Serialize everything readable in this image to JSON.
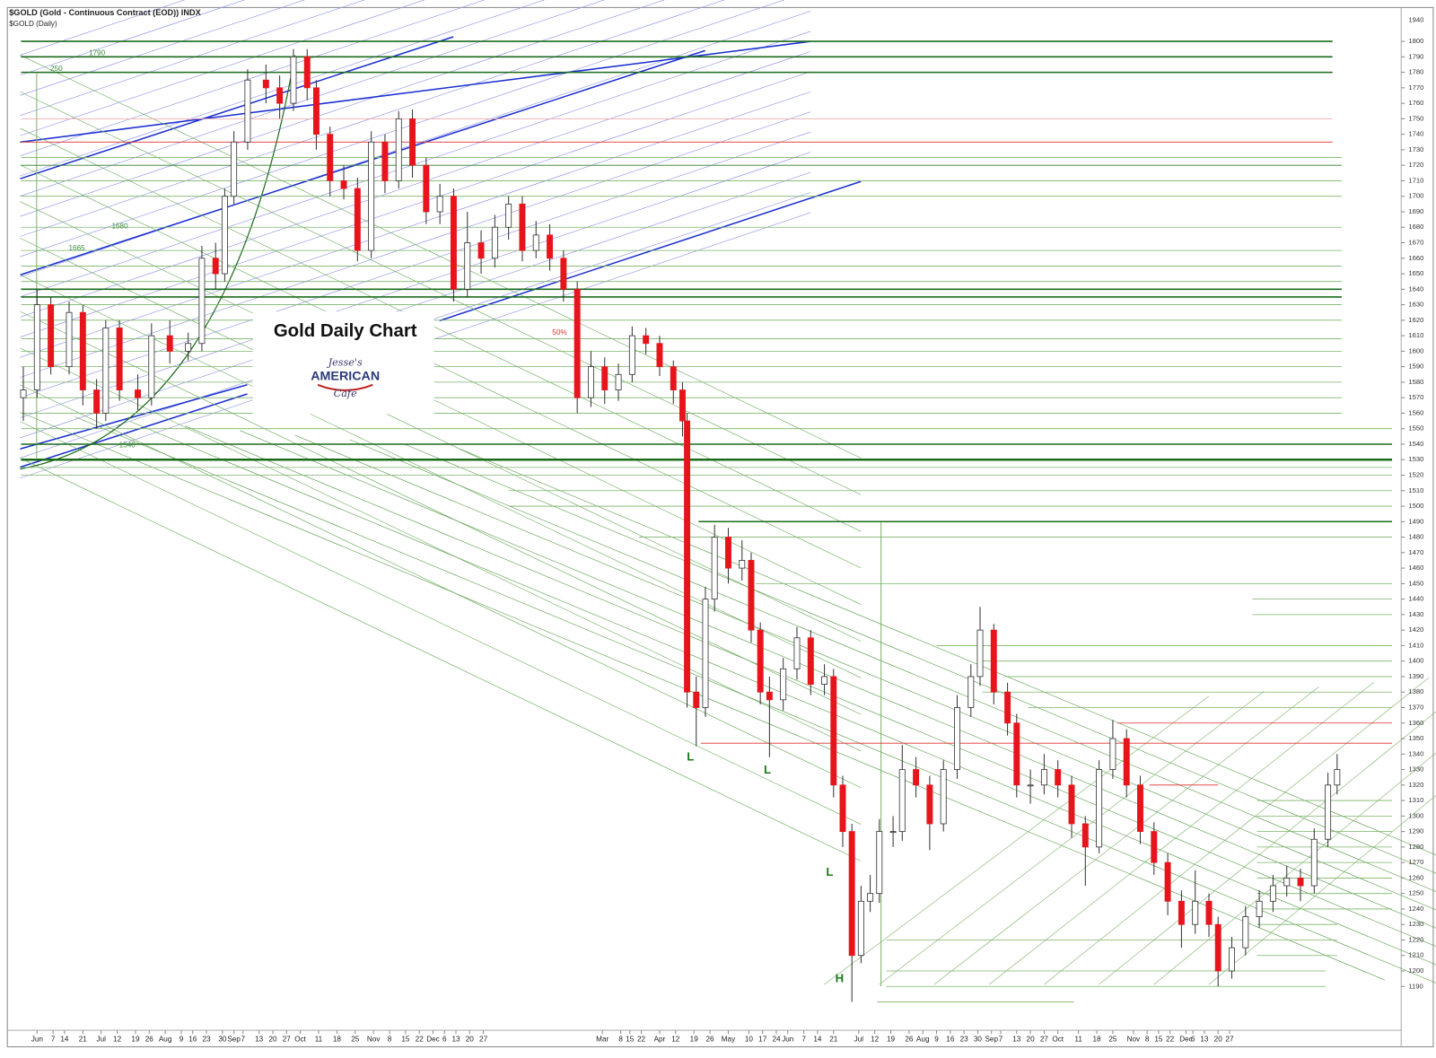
{
  "chart_data": {
    "type": "candlestick",
    "header_title": "$GOLD (Gold - Continuous Contract (EOD)) INDX",
    "header_subtitle": "$GOLD (Daily)",
    "title": "Gold Daily Chart",
    "logo": [
      "Jesse's",
      "AMERICAN",
      "Cafe"
    ],
    "annotations": [
      "1790",
      "250",
      "1680",
      "1665",
      "1540",
      "50%",
      "L",
      "L",
      "L",
      "H"
    ],
    "up_color": "#ffffff",
    "down_color": "#e8141c",
    "wick_color": "#333333",
    "x": [
      1,
      7,
      13,
      21,
      27,
      33,
      37,
      43,
      51,
      57,
      65,
      73,
      79,
      85,
      89,
      93,
      99,
      107,
      113,
      119,
      125,
      129,
      135,
      141,
      147,
      153,
      159,
      165,
      171,
      177,
      183,
      189,
      195,
      201,
      207,
      213,
      219,
      225,
      231,
      237,
      243,
      249,
      255,
      261,
      267,
      273,
      279,
      285,
      289,
      291,
      295,
      299,
      303,
      309,
      315,
      319,
      323,
      327,
      333,
      339,
      345,
      351,
      355,
      359,
      363,
      367,
      371,
      375,
      381,
      385,
      391,
      397,
      403,
      409,
      415,
      419,
      425,
      431,
      435,
      441,
      447,
      453,
      459,
      465,
      471,
      477,
      483,
      489,
      495,
      501,
      507,
      513,
      519,
      523,
      529,
      535,
      541,
      547,
      553,
      559,
      565,
      571,
      575
    ],
    "open": [
      1570,
      1575,
      1630,
      1590,
      1625,
      1575,
      1560,
      1615,
      1575,
      1570,
      1610,
      1600,
      1605,
      1660,
      1650,
      1700,
      1735,
      1775,
      1770,
      1760,
      1790,
      1770,
      1740,
      1710,
      1705,
      1665,
      1735,
      1710,
      1750,
      1720,
      1690,
      1700,
      1640,
      1670,
      1660,
      1680,
      1695,
      1665,
      1675,
      1660,
      1640,
      1570,
      1590,
      1575,
      1585,
      1610,
      1605,
      1590,
      1575,
      1555,
      1380,
      1370,
      1440,
      1480,
      1460,
      1465,
      1420,
      1380,
      1375,
      1395,
      1415,
      1385,
      1390,
      1320,
      1290,
      1210,
      1245,
      1250,
      1290,
      1290,
      1330,
      1320,
      1295,
      1330,
      1370,
      1390,
      1420,
      1380,
      1360,
      1320,
      1320,
      1330,
      1320,
      1295,
      1280,
      1330,
      1350,
      1320,
      1290,
      1270,
      1245,
      1230,
      1245,
      1230,
      1200,
      1215,
      1235,
      1245,
      1255,
      1260,
      1255,
      1285,
      1320
    ],
    "high": [
      1590,
      1640,
      1635,
      1632,
      1630,
      1582,
      1620,
      1620,
      1585,
      1618,
      1620,
      1612,
      1668,
      1670,
      1705,
      1742,
      1782,
      1785,
      1778,
      1795,
      1795,
      1775,
      1745,
      1720,
      1712,
      1742,
      1740,
      1755,
      1756,
      1725,
      1708,
      1705,
      1690,
      1678,
      1688,
      1700,
      1700,
      1684,
      1682,
      1665,
      1645,
      1600,
      1596,
      1592,
      1616,
      1615,
      1610,
      1594,
      1580,
      1560,
      1390,
      1448,
      1488,
      1486,
      1478,
      1470,
      1425,
      1390,
      1402,
      1422,
      1420,
      1398,
      1395,
      1326,
      1295,
      1255,
      1262,
      1298,
      1300,
      1346,
      1338,
      1326,
      1336,
      1378,
      1398,
      1435,
      1424,
      1386,
      1366,
      1330,
      1340,
      1336,
      1326,
      1300,
      1336,
      1362,
      1356,
      1326,
      1296,
      1276,
      1252,
      1265,
      1250,
      1235,
      1222,
      1242,
      1252,
      1262,
      1268,
      1266,
      1292,
      1328,
      1340
    ],
    "low": [
      1555,
      1570,
      1585,
      1585,
      1565,
      1550,
      1555,
      1568,
      1562,
      1565,
      1592,
      1594,
      1600,
      1640,
      1645,
      1695,
      1730,
      1760,
      1750,
      1755,
      1762,
      1730,
      1700,
      1698,
      1658,
      1660,
      1702,
      1705,
      1712,
      1682,
      1682,
      1632,
      1635,
      1650,
      1654,
      1672,
      1658,
      1660,
      1652,
      1632,
      1560,
      1564,
      1566,
      1568,
      1580,
      1598,
      1584,
      1566,
      1545,
      1370,
      1345,
      1364,
      1432,
      1450,
      1452,
      1412,
      1372,
      1338,
      1368,
      1388,
      1378,
      1378,
      1312,
      1280,
      1180,
      1205,
      1238,
      1244,
      1280,
      1284,
      1312,
      1278,
      1290,
      1324,
      1364,
      1384,
      1372,
      1352,
      1312,
      1308,
      1314,
      1312,
      1286,
      1255,
      1276,
      1324,
      1312,
      1282,
      1262,
      1236,
      1215,
      1224,
      1222,
      1190,
      1195,
      1210,
      1228,
      1238,
      1248,
      1245,
      1250,
      1280,
      1314
    ],
    "close": [
      1575,
      1630,
      1590,
      1625,
      1575,
      1560,
      1615,
      1575,
      1570,
      1610,
      1600,
      1605,
      1660,
      1650,
      1700,
      1735,
      1775,
      1770,
      1760,
      1790,
      1770,
      1740,
      1710,
      1705,
      1665,
      1735,
      1710,
      1750,
      1720,
      1690,
      1700,
      1640,
      1670,
      1660,
      1680,
      1695,
      1665,
      1675,
      1660,
      1640,
      1570,
      1590,
      1575,
      1585,
      1610,
      1605,
      1590,
      1575,
      1555,
      1380,
      1370,
      1440,
      1480,
      1460,
      1465,
      1420,
      1380,
      1375,
      1395,
      1415,
      1385,
      1390,
      1320,
      1290,
      1210,
      1245,
      1250,
      1290,
      1290,
      1330,
      1320,
      1295,
      1330,
      1370,
      1390,
      1420,
      1380,
      1360,
      1320,
      1320,
      1330,
      1320,
      1295,
      1280,
      1330,
      1350,
      1320,
      1290,
      1270,
      1245,
      1230,
      1245,
      1230,
      1200,
      1215,
      1235,
      1245,
      1255,
      1260,
      1255,
      1285,
      1320,
      1330
    ],
    "xlim": [
      -6,
      603
    ],
    "ylim": [
      1180,
      1810
    ],
    "y_top_label": "1940",
    "yticks": [
      1190,
      1200,
      1210,
      1220,
      1230,
      1240,
      1250,
      1260,
      1270,
      1280,
      1290,
      1300,
      1310,
      1320,
      1330,
      1340,
      1350,
      1360,
      1370,
      1380,
      1390,
      1400,
      1410,
      1420,
      1430,
      1440,
      1450,
      1460,
      1470,
      1480,
      1490,
      1500,
      1510,
      1520,
      1530,
      1540,
      1550,
      1560,
      1570,
      1580,
      1590,
      1600,
      1610,
      1620,
      1630,
      1640,
      1650,
      1660,
      1670,
      1680,
      1690,
      1700,
      1710,
      1720,
      1730,
      1740,
      1750,
      1760,
      1770,
      1780,
      1790,
      1800
    ],
    "xticks": [
      {
        "value": 7,
        "label": "Jun"
      },
      {
        "value": 14,
        "label": "7"
      },
      {
        "value": 19,
        "label": "14"
      },
      {
        "value": 27,
        "label": "21"
      },
      {
        "value": 35,
        "label": "Jul"
      },
      {
        "value": 42,
        "label": "12"
      },
      {
        "value": 50,
        "label": "19"
      },
      {
        "value": 56,
        "label": "26"
      },
      {
        "value": 63,
        "label": "Aug"
      },
      {
        "value": 70,
        "label": "9"
      },
      {
        "value": 75,
        "label": "16"
      },
      {
        "value": 81,
        "label": "23"
      },
      {
        "value": 88,
        "label": "30"
      },
      {
        "value": 93,
        "label": "Sep"
      },
      {
        "value": 97,
        "label": "7"
      },
      {
        "value": 104,
        "label": "13"
      },
      {
        "value": 110,
        "label": "20"
      },
      {
        "value": 116,
        "label": "27"
      },
      {
        "value": 122,
        "label": "Oct"
      },
      {
        "value": 130,
        "label": "11"
      },
      {
        "value": 138,
        "label": "18"
      },
      {
        "value": 146,
        "label": "25"
      },
      {
        "value": 154,
        "label": "Nov"
      },
      {
        "value": 161,
        "label": "8"
      },
      {
        "value": 168,
        "label": "15"
      },
      {
        "value": 174,
        "label": "22"
      },
      {
        "value": 180,
        "label": "Dec"
      },
      {
        "value": 185,
        "label": "6"
      },
      {
        "value": 190,
        "label": "13"
      },
      {
        "value": 196,
        "label": "20"
      },
      {
        "value": 202,
        "label": "27"
      },
      {
        "value": 254,
        "label": "Mar"
      },
      {
        "value": 262,
        "label": "8"
      },
      {
        "value": 266,
        "label": "15"
      },
      {
        "value": 271,
        "label": "22"
      },
      {
        "value": 279,
        "label": "Apr"
      },
      {
        "value": 286,
        "label": "12"
      },
      {
        "value": 294,
        "label": "19"
      },
      {
        "value": 301,
        "label": "26"
      },
      {
        "value": 309,
        "label": "May"
      },
      {
        "value": 318,
        "label": "10"
      },
      {
        "value": 324,
        "label": "17"
      },
      {
        "value": 330,
        "label": "24"
      },
      {
        "value": 335,
        "label": "Jun"
      },
      {
        "value": 342,
        "label": "7"
      },
      {
        "value": 348,
        "label": "14"
      },
      {
        "value": 355,
        "label": "21"
      },
      {
        "value": 366,
        "label": "Jul"
      },
      {
        "value": 373,
        "label": "12"
      },
      {
        "value": 380,
        "label": "19"
      },
      {
        "value": 388,
        "label": "26"
      },
      {
        "value": 394,
        "label": "Aug"
      },
      {
        "value": 400,
        "label": "9"
      },
      {
        "value": 406,
        "label": "16"
      },
      {
        "value": 412,
        "label": "23"
      },
      {
        "value": 418,
        "label": "30"
      },
      {
        "value": 424,
        "label": "Sep"
      },
      {
        "value": 428,
        "label": "7"
      },
      {
        "value": 435,
        "label": "13"
      },
      {
        "value": 441,
        "label": "20"
      },
      {
        "value": 447,
        "label": "27"
      },
      {
        "value": 453,
        "label": "Oct"
      },
      {
        "value": 462,
        "label": "11"
      },
      {
        "value": 470,
        "label": "18"
      },
      {
        "value": 477,
        "label": "25"
      },
      {
        "value": 486,
        "label": "Nov"
      },
      {
        "value": 492,
        "label": "8"
      },
      {
        "value": 497,
        "label": "15"
      },
      {
        "value": 502,
        "label": "22"
      },
      {
        "value": 509,
        "label": "Dec"
      },
      {
        "value": 512,
        "label": "6"
      },
      {
        "value": 517,
        "label": "13"
      },
      {
        "value": 523,
        "label": "20"
      },
      {
        "value": 528,
        "label": "27"
      }
    ],
    "levels": [
      {
        "price": 1800,
        "x0": 0,
        "x1": 573,
        "color": "#1b6b1b"
      },
      {
        "price": 1790,
        "x0": 0,
        "x1": 573,
        "color": "#1b6b1b"
      },
      {
        "price": 1780,
        "x0": 0,
        "x1": 573,
        "color": "#1b6b1b"
      },
      {
        "price": 1750,
        "x0": 0,
        "x1": 573,
        "color": "#f4a0a0"
      },
      {
        "price": 1735,
        "x0": 0,
        "x1": 573,
        "color": "#e03030"
      },
      {
        "price": 1725,
        "x0": 0,
        "x1": 577,
        "color": "#7cb36a"
      },
      {
        "price": 1720,
        "x0": 0,
        "x1": 577,
        "color": "#2f7f2f"
      },
      {
        "price": 1710,
        "x0": 0,
        "x1": 577,
        "color": "#7cb36a"
      },
      {
        "price": 1700,
        "x0": 0,
        "x1": 577,
        "color": "#7cb36a"
      },
      {
        "price": 1680,
        "x0": 0,
        "x1": 577,
        "color": "#7cb36a"
      },
      {
        "price": 1665,
        "x0": 0,
        "x1": 577,
        "color": "#7cb36a"
      },
      {
        "price": 1655,
        "x0": 0,
        "x1": 577,
        "color": "#7cb36a"
      },
      {
        "price": 1645,
        "x0": 0,
        "x1": 577,
        "color": "#7cb36a"
      },
      {
        "price": 1640,
        "x0": 0,
        "x1": 577,
        "color": "#1b6b1b"
      },
      {
        "price": 1635,
        "x0": 0,
        "x1": 577,
        "color": "#1b6b1b"
      },
      {
        "price": 1630,
        "x0": 0,
        "x1": 577,
        "color": "#7cb36a"
      },
      {
        "price": 1620,
        "x0": 0,
        "x1": 577,
        "color": "#7cb36a"
      },
      {
        "price": 1608,
        "x0": 0,
        "x1": 577,
        "color": "#7cb36a"
      },
      {
        "price": 1600,
        "x0": 0,
        "x1": 577,
        "color": "#7cb36a"
      },
      {
        "price": 1590,
        "x0": 0,
        "x1": 577,
        "color": "#7cb36a"
      },
      {
        "price": 1580,
        "x0": 0,
        "x1": 577,
        "color": "#7cb36a"
      },
      {
        "price": 1570,
        "x0": 0,
        "x1": 577,
        "color": "#7cb36a"
      },
      {
        "price": 1560,
        "x0": 0,
        "x1": 577,
        "color": "#7cb36a"
      },
      {
        "price": 1550,
        "x0": 0,
        "x1": 599,
        "color": "#7cb36a"
      },
      {
        "price": 1540,
        "x0": 0,
        "x1": 599,
        "color": "#1b6b1b"
      },
      {
        "price": 1530,
        "x0": 0,
        "x1": 599,
        "color": "#1b6b1b"
      },
      {
        "price": 1525,
        "x0": 0,
        "x1": 599,
        "color": "#7cb36a"
      },
      {
        "price": 1520,
        "x0": 0,
        "x1": 599,
        "color": "#7cb36a"
      },
      {
        "price": 1510,
        "x0": 213,
        "x1": 599,
        "color": "#7cb36a"
      },
      {
        "price": 1500,
        "x0": 213,
        "x1": 599,
        "color": "#7cb36a"
      },
      {
        "price": 1490,
        "x0": 296,
        "x1": 599,
        "color": "#1b6b1b"
      },
      {
        "price": 1480,
        "x0": 270,
        "x1": 599,
        "color": "#7cb36a"
      },
      {
        "price": 1450,
        "x0": 321,
        "x1": 599,
        "color": "#7cb36a"
      },
      {
        "price": 1440,
        "x0": 538,
        "x1": 599,
        "color": "#7cb36a"
      },
      {
        "price": 1430,
        "x0": 538,
        "x1": 599,
        "color": "#7cb36a"
      },
      {
        "price": 1410,
        "x0": 400,
        "x1": 599,
        "color": "#7cb36a"
      },
      {
        "price": 1400,
        "x0": 420,
        "x1": 599,
        "color": "#7cb36a"
      },
      {
        "price": 1390,
        "x0": 430,
        "x1": 599,
        "color": "#7cb36a"
      },
      {
        "price": 1380,
        "x0": 420,
        "x1": 599,
        "color": "#7cb36a"
      },
      {
        "price": 1370,
        "x0": 440,
        "x1": 599,
        "color": "#7cb36a"
      },
      {
        "price": 1360,
        "x0": 479,
        "x1": 599,
        "color": "#e03030"
      },
      {
        "price": 1347,
        "x0": 297,
        "x1": 599,
        "color": "#e03030"
      },
      {
        "price": 1320,
        "x0": 493,
        "x1": 523,
        "color": "#e03030"
      },
      {
        "price": 1310,
        "x0": 540,
        "x1": 599,
        "color": "#7cb36a"
      },
      {
        "price": 1300,
        "x0": 540,
        "x1": 599,
        "color": "#7cb36a"
      },
      {
        "price": 1290,
        "x0": 540,
        "x1": 599,
        "color": "#7cb36a"
      },
      {
        "price": 1280,
        "x0": 540,
        "x1": 599,
        "color": "#7cb36a"
      },
      {
        "price": 1270,
        "x0": 540,
        "x1": 599,
        "color": "#7cb36a"
      },
      {
        "price": 1260,
        "x0": 540,
        "x1": 599,
        "color": "#7cb36a"
      },
      {
        "price": 1250,
        "x0": 540,
        "x1": 599,
        "color": "#7cb36a"
      },
      {
        "price": 1240,
        "x0": 540,
        "x1": 599,
        "color": "#7cb36a"
      },
      {
        "price": 1230,
        "x0": 540,
        "x1": 575,
        "color": "#7cb36a"
      },
      {
        "price": 1220,
        "x0": 378,
        "x1": 575,
        "color": "#7cb36a"
      },
      {
        "price": 1210,
        "x0": 540,
        "x1": 575,
        "color": "#7cb36a"
      },
      {
        "price": 1200,
        "x0": 378,
        "x1": 570,
        "color": "#7cb36a"
      },
      {
        "price": 1190,
        "x0": 378,
        "x1": 570,
        "color": "#7cb36a"
      },
      {
        "price": 1180,
        "x0": 374,
        "x1": 460,
        "color": "#7cb36a"
      }
    ]
  }
}
